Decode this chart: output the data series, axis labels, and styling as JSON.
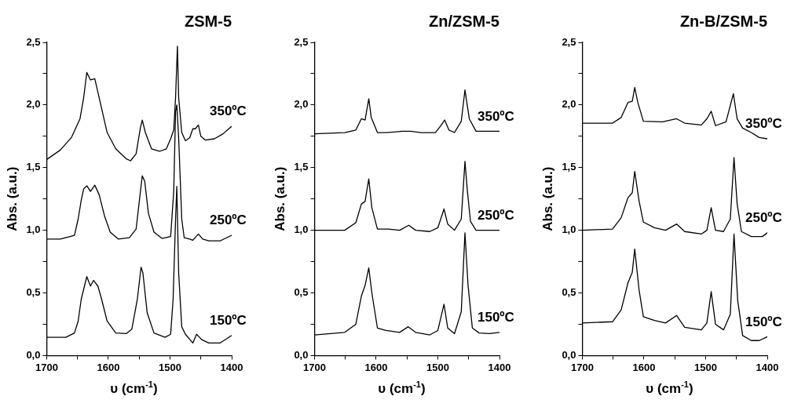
{
  "chart_data": [
    {
      "type": "line",
      "title": "ZSM-5",
      "xlabel": "υ (cm$^{-1}$)",
      "ylabel": "Abs. (a.u.)",
      "xlim": [
        1700,
        1400
      ],
      "xticks": [
        1700,
        {
          "value": 1650,
          "label": null
        },
        1600,
        {
          "value": 1550,
          "label": null
        },
        1500,
        {
          "value": 1450,
          "label": null
        },
        1400
      ],
      "ylim": [
        0,
        2.5
      ],
      "yticks": [
        {
          "value": 0,
          "label": "0,0"
        },
        {
          "value": 0.25,
          "label": null
        },
        {
          "value": 0.5,
          "label": "0,5"
        },
        {
          "value": 0.75,
          "label": null
        },
        {
          "value": 1,
          "label": "1,0"
        },
        {
          "value": 1.25,
          "label": null
        },
        {
          "value": 1.5,
          "label": "1,5"
        },
        {
          "value": 1.75,
          "label": null
        },
        {
          "value": 2,
          "label": "2,0"
        },
        {
          "value": 2.25,
          "label": null
        },
        {
          "value": 2.5,
          "label": "2,5"
        }
      ],
      "grid": false,
      "legend": false,
      "marker": "none",
      "line_style": "solid",
      "series": [
        {
          "name": "350ºC",
          "color": "#000000",
          "x": [
            1700,
            1678,
            1660,
            1646,
            1640,
            1635,
            1629,
            1622,
            1615,
            1602,
            1588,
            1571,
            1564,
            1555,
            1548,
            1545,
            1540,
            1530,
            1517,
            1506,
            1499,
            1494,
            1491,
            1488,
            1486,
            1481,
            1475,
            1468,
            1463,
            1459,
            1454,
            1450,
            1443,
            1428,
            1414,
            1400
          ],
          "values": [
            1.565,
            1.64,
            1.74,
            1.89,
            2.06,
            2.26,
            2.2,
            2.21,
            2.06,
            1.78,
            1.65,
            1.57,
            1.555,
            1.61,
            1.82,
            1.88,
            1.78,
            1.65,
            1.63,
            1.65,
            1.73,
            1.8,
            2.06,
            2.47,
            2.06,
            1.78,
            1.715,
            1.74,
            1.81,
            1.81,
            1.84,
            1.75,
            1.72,
            1.73,
            1.77,
            1.83
          ]
        },
        {
          "name": "250ºC",
          "color": "#000000",
          "x": [
            1700,
            1678,
            1655,
            1649,
            1644,
            1640,
            1635,
            1629,
            1622,
            1615,
            1606,
            1597,
            1584,
            1566,
            1555,
            1548,
            1545,
            1541,
            1535,
            1526,
            1513,
            1499,
            1494,
            1491,
            1489,
            1486,
            1481,
            1477,
            1468,
            1463,
            1454,
            1447,
            1437,
            1419,
            1400
          ],
          "values": [
            0.93,
            0.93,
            0.96,
            1.09,
            1.24,
            1.33,
            1.355,
            1.31,
            1.36,
            1.285,
            1.11,
            0.985,
            0.93,
            0.94,
            1.01,
            1.31,
            1.435,
            1.39,
            1.135,
            0.985,
            0.935,
            0.95,
            1.31,
            1.95,
            2.0,
            1.74,
            1.09,
            0.94,
            0.93,
            0.92,
            0.97,
            0.93,
            0.915,
            0.915,
            0.96
          ]
        },
        {
          "name": "150ºC",
          "color": "#000000",
          "x": [
            1700,
            1669,
            1655,
            1649,
            1644,
            1640,
            1635,
            1629,
            1624,
            1617,
            1611,
            1602,
            1588,
            1571,
            1562,
            1553,
            1547,
            1544,
            1537,
            1526,
            1508,
            1499,
            1495,
            1491,
            1489,
            1486,
            1481,
            1475,
            1463,
            1457,
            1448,
            1437,
            1419,
            1400
          ],
          "values": [
            0.146,
            0.146,
            0.18,
            0.275,
            0.45,
            0.53,
            0.63,
            0.555,
            0.6,
            0.555,
            0.45,
            0.275,
            0.18,
            0.175,
            0.21,
            0.45,
            0.705,
            0.66,
            0.34,
            0.18,
            0.146,
            0.17,
            0.45,
            1.09,
            1.35,
            0.66,
            0.23,
            0.17,
            0.1,
            0.17,
            0.125,
            0.1,
            0.1,
            0.16
          ]
        }
      ]
    },
    {
      "type": "line",
      "title": "Zn/ZSM-5",
      "xlabel": "υ (cm$^{-1}$)",
      "ylabel": "Abs. (a.u.)",
      "xlim": [
        1700,
        1400
      ],
      "xticks": [
        1700,
        {
          "value": 1650,
          "label": null
        },
        1600,
        {
          "value": 1550,
          "label": null
        },
        1500,
        {
          "value": 1450,
          "label": null
        },
        1400
      ],
      "ylim": [
        0,
        2.5
      ],
      "yticks": [
        {
          "value": 0,
          "label": "0,0"
        },
        {
          "value": 0.25,
          "label": null
        },
        {
          "value": 0.5,
          "label": "0,5"
        },
        {
          "value": 0.75,
          "label": null
        },
        {
          "value": 1,
          "label": "1,0"
        },
        {
          "value": 1.25,
          "label": null
        },
        {
          "value": 1.5,
          "label": "1,5"
        },
        {
          "value": 1.75,
          "label": null
        },
        {
          "value": 2,
          "label": "2,0"
        },
        {
          "value": 2.25,
          "label": null
        },
        {
          "value": 2.5,
          "label": "2,5"
        }
      ],
      "grid": false,
      "legend": false,
      "marker": "none",
      "line_style": "solid",
      "series": [
        {
          "name": "350ºC",
          "color": "#000000",
          "x": [
            1700,
            1651,
            1633,
            1624,
            1618,
            1612,
            1608,
            1598,
            1584,
            1558,
            1544,
            1527,
            1504,
            1496,
            1489,
            1482,
            1473,
            1462,
            1456,
            1449,
            1438,
            1416,
            1400
          ],
          "values": [
            1.77,
            1.78,
            1.8,
            1.89,
            1.88,
            2.05,
            1.9,
            1.78,
            1.78,
            1.79,
            1.79,
            1.78,
            1.78,
            1.83,
            1.88,
            1.8,
            1.78,
            1.87,
            2.12,
            1.89,
            1.79,
            1.79,
            1.79
          ]
        },
        {
          "name": "250ºC",
          "color": "#000000",
          "x": [
            1700,
            1651,
            1633,
            1624,
            1618,
            1612,
            1607,
            1598,
            1580,
            1562,
            1547,
            1536,
            1513,
            1500,
            1490,
            1484,
            1473,
            1462,
            1456,
            1452,
            1447,
            1438,
            1416,
            1400
          ],
          "values": [
            1.0,
            1.0,
            1.06,
            1.21,
            1.23,
            1.41,
            1.18,
            1.01,
            1.01,
            1.0,
            1.04,
            1.0,
            0.99,
            1.02,
            1.17,
            1.05,
            1.0,
            1.09,
            1.55,
            1.31,
            1.07,
            1.0,
            1.0,
            1.0
          ]
        },
        {
          "name": "150ºC",
          "color": "#000000",
          "x": [
            1700,
            1651,
            1633,
            1624,
            1618,
            1612,
            1607,
            1598,
            1584,
            1562,
            1548,
            1536,
            1513,
            1500,
            1490,
            1484,
            1473,
            1462,
            1456,
            1451,
            1444,
            1433,
            1416,
            1400
          ],
          "values": [
            0.165,
            0.185,
            0.25,
            0.475,
            0.56,
            0.7,
            0.5,
            0.22,
            0.2,
            0.185,
            0.23,
            0.185,
            0.165,
            0.2,
            0.41,
            0.22,
            0.175,
            0.35,
            0.98,
            0.56,
            0.22,
            0.18,
            0.175,
            0.185
          ]
        }
      ]
    },
    {
      "type": "line",
      "title": "Zn-B/ZSM-5",
      "xlabel": "υ (cm$^{-1}$)",
      "ylabel": "Abs. (a.u.)",
      "xlim": [
        1700,
        1400
      ],
      "xticks": [
        1700,
        {
          "value": 1650,
          "label": null
        },
        1600,
        {
          "value": 1550,
          "label": null
        },
        1500,
        {
          "value": 1450,
          "label": null
        },
        1400
      ],
      "ylim": [
        0,
        2.5
      ],
      "yticks": [
        {
          "value": 0,
          "label": "0,0"
        },
        {
          "value": 0.25,
          "label": null
        },
        {
          "value": 0.5,
          "label": "0,5"
        },
        {
          "value": 0.75,
          "label": null
        },
        {
          "value": 1,
          "label": "1,0"
        },
        {
          "value": 1.25,
          "label": null
        },
        {
          "value": 1.5,
          "label": "1,5"
        },
        {
          "value": 1.75,
          "label": null
        },
        {
          "value": 2,
          "label": "2,0"
        },
        {
          "value": 2.25,
          "label": null
        },
        {
          "value": 2.5,
          "label": "2,5"
        }
      ],
      "grid": false,
      "legend": false,
      "marker": "none",
      "line_style": "solid",
      "series": [
        {
          "name": "350ºC",
          "color": "#000000",
          "x": [
            1700,
            1651,
            1637,
            1626,
            1619,
            1615,
            1610,
            1601,
            1570,
            1547,
            1534,
            1507,
            1498,
            1491,
            1484,
            1467,
            1455,
            1449,
            1440,
            1426,
            1413,
            1400
          ],
          "values": [
            1.855,
            1.855,
            1.9,
            2.02,
            2.03,
            2.14,
            2.02,
            1.87,
            1.865,
            1.89,
            1.855,
            1.84,
            1.89,
            1.95,
            1.835,
            1.865,
            2.09,
            1.89,
            1.815,
            1.78,
            1.74,
            1.73
          ]
        },
        {
          "name": "250ºC",
          "color": "#000000",
          "x": [
            1700,
            1651,
            1637,
            1626,
            1619,
            1615,
            1608,
            1601,
            1583,
            1565,
            1547,
            1534,
            1507,
            1498,
            1491,
            1484,
            1471,
            1460,
            1454,
            1449,
            1442,
            1426,
            1408,
            1400
          ],
          "values": [
            1.0,
            1.01,
            1.1,
            1.26,
            1.3,
            1.47,
            1.235,
            1.065,
            1.02,
            1.0,
            1.05,
            0.99,
            0.97,
            1.0,
            1.18,
            1.0,
            0.99,
            1.09,
            1.58,
            1.215,
            0.99,
            0.95,
            0.95,
            0.98
          ]
        },
        {
          "name": "150ºC",
          "color": "#000000",
          "x": [
            1700,
            1651,
            1637,
            1626,
            1619,
            1615,
            1608,
            1601,
            1583,
            1565,
            1547,
            1534,
            1507,
            1498,
            1491,
            1484,
            1471,
            1460,
            1454,
            1448,
            1440,
            1426,
            1413,
            1400
          ],
          "values": [
            0.26,
            0.27,
            0.365,
            0.58,
            0.665,
            0.85,
            0.525,
            0.31,
            0.28,
            0.26,
            0.32,
            0.225,
            0.205,
            0.26,
            0.51,
            0.25,
            0.205,
            0.33,
            0.97,
            0.44,
            0.16,
            0.12,
            0.12,
            0.15
          ]
        }
      ]
    }
  ]
}
